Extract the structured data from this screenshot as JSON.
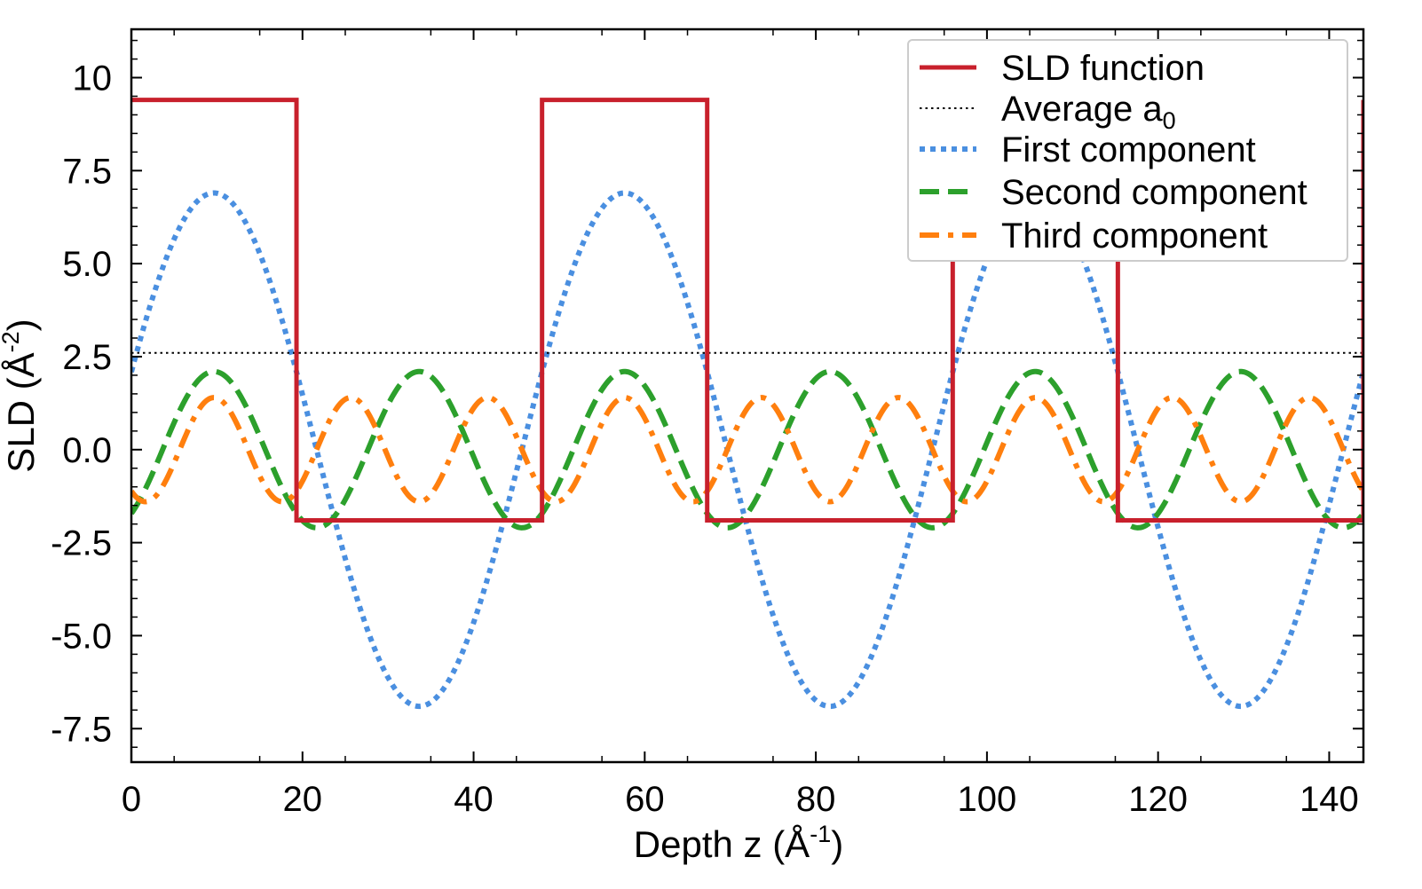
{
  "chart_data": {
    "type": "line",
    "xlabel": {
      "prefix": "Depth z (Å",
      "sup": "-1",
      "suffix": ")"
    },
    "ylabel": {
      "prefix": "SLD (Å",
      "sup": "-2",
      "suffix": ")"
    },
    "xlim": [
      0,
      144.0
    ],
    "ylim": [
      -8.4,
      11.3
    ],
    "xticks": [
      0,
      20,
      40,
      60,
      80,
      100,
      120,
      140
    ],
    "xtick_labels": [
      "0",
      "20",
      "40",
      "60",
      "80",
      "100",
      "120",
      "140"
    ],
    "yticks": [
      10,
      7.5,
      5.0,
      2.5,
      0.0,
      -2.5,
      -5.0,
      -7.5
    ],
    "ytick_labels": [
      "10",
      "7.5",
      "5.0",
      "2.5",
      "0.0",
      "-2.5",
      "-5.0",
      "-7.5"
    ],
    "grid": false,
    "legend_position": "top-right",
    "period": 48.0,
    "series": [
      {
        "name": "SLD function",
        "style": "solid",
        "color": "#c8202c",
        "kind": "step",
        "high": 9.4,
        "low": -1.9,
        "x": [
          0,
          19.3,
          19.3,
          48.0,
          48.0,
          67.3,
          67.3,
          96.0,
          96.0,
          115.3,
          115.3,
          144.0,
          144.0
        ],
        "y": [
          9.4,
          9.4,
          -1.9,
          -1.9,
          9.4,
          9.4,
          -1.9,
          -1.9,
          9.4,
          9.4,
          -1.9,
          -1.9,
          9.4
        ]
      },
      {
        "name": "Average a",
        "name_sub": "0",
        "style": "dotted-fine",
        "color": "#000000",
        "kind": "constant",
        "value": 2.6
      },
      {
        "name": "First component",
        "style": "dotted",
        "color": "#4a8fe0",
        "kind": "cosine",
        "amplitude": 6.9,
        "harmonic": 1,
        "peak_x": 9.65
      },
      {
        "name": "Second component",
        "style": "dashed",
        "color": "#2ca02c",
        "kind": "cosine",
        "amplitude": 2.1,
        "harmonic": 2,
        "peak_x": 9.65
      },
      {
        "name": "Third component",
        "style": "dashdot",
        "color": "#ff7f0e",
        "kind": "cosine",
        "amplitude": 1.4,
        "harmonic": 3,
        "peak_x": 9.65
      }
    ]
  }
}
